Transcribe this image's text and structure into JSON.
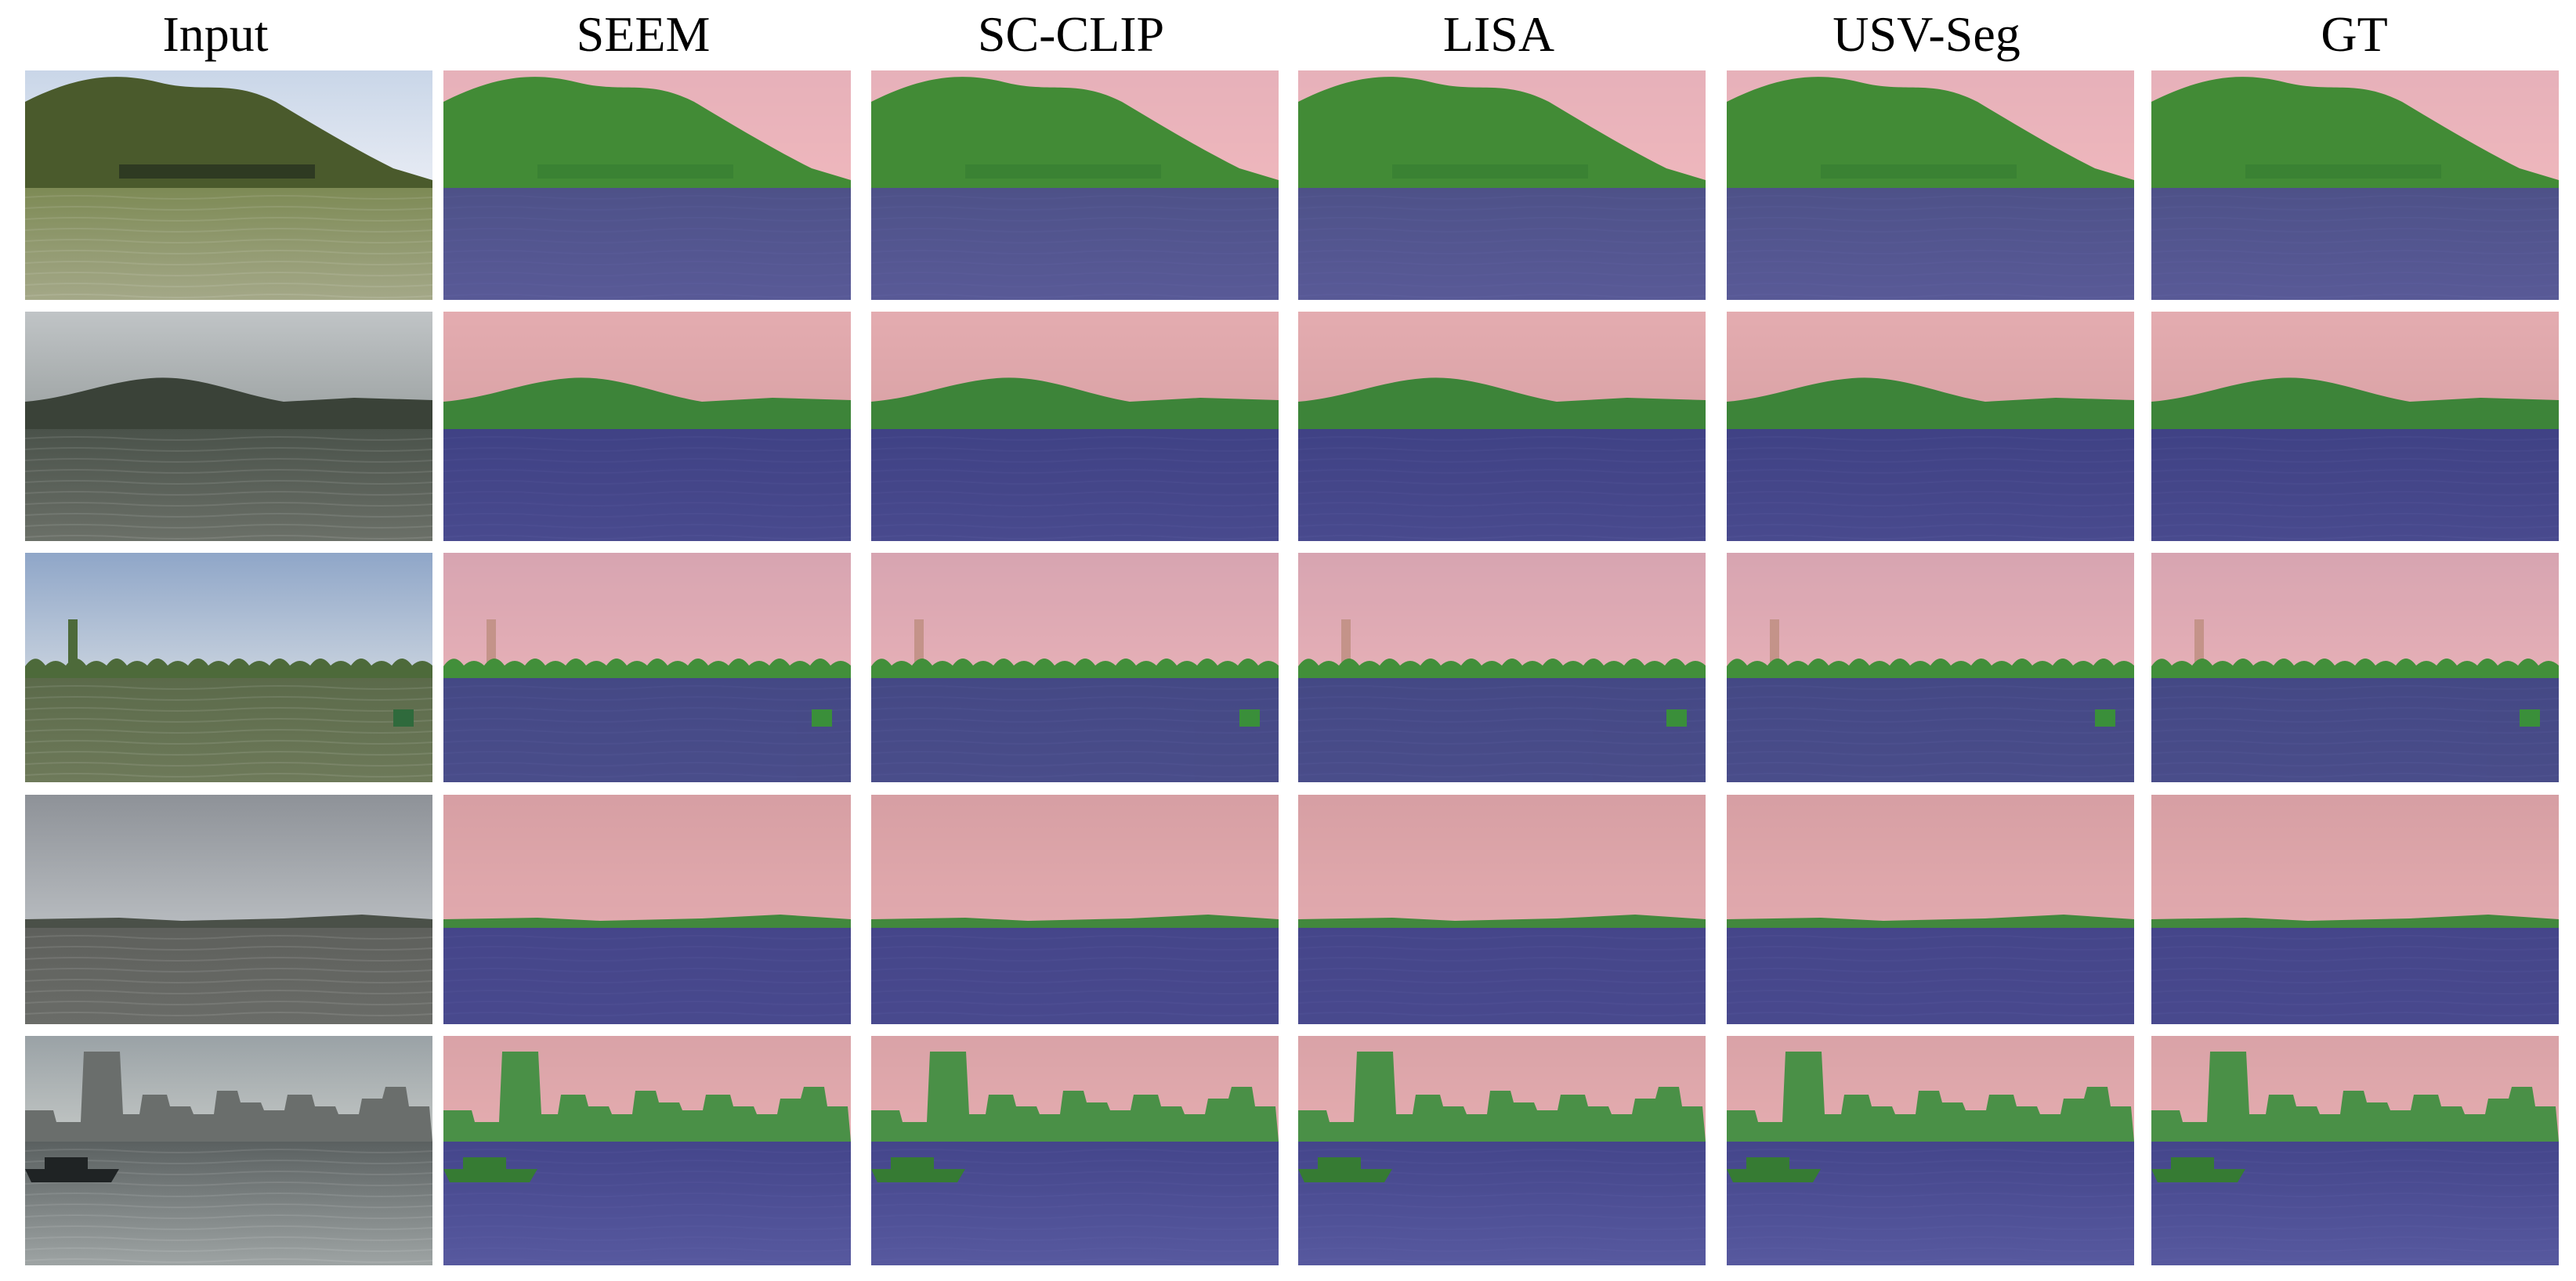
{
  "columns": [
    {
      "label": "Input",
      "kind": "input"
    },
    {
      "label": "SEEM",
      "kind": "overlay"
    },
    {
      "label": "SC-CLIP",
      "kind": "overlay"
    },
    {
      "label": "LISA",
      "kind": "overlay"
    },
    {
      "label": "USV-Seg",
      "kind": "overlay"
    },
    {
      "label": "GT",
      "kind": "overlay"
    }
  ],
  "class_colors": {
    "sky": "#f2a3a8",
    "land": "#3f9e3a",
    "water": "#3c3c9c"
  },
  "scenes": [
    {
      "name": "tree-lined-shore",
      "sky_top": "#c9d6e8",
      "sky_bottom": "#e8ecf4",
      "land": "#4a5a2c",
      "water_top": "#7d8a55",
      "water_bottom": "#a4a888",
      "skyline": "hill-trees",
      "objects": [
        "pier"
      ]
    },
    {
      "name": "misty-hill-lake",
      "sky_top": "#c0c4c6",
      "sky_bottom": "#9aa0a0",
      "land": "#3a4238",
      "water_top": "#4a524a",
      "water_bottom": "#6b7068",
      "skyline": "hill",
      "objects": []
    },
    {
      "name": "lake-with-buoy",
      "sky_top": "#8fa6c8",
      "sky_bottom": "#c8d2de",
      "land": "#4d6a3a",
      "water_top": "#5b6a4a",
      "water_bottom": "#6e7a5a",
      "skyline": "flat-trees",
      "objects": [
        "tower",
        "buoy"
      ]
    },
    {
      "name": "overcast-wide-lake",
      "sky_top": "#8e9298",
      "sky_bottom": "#b8bcc0",
      "land": "#4a5048",
      "water_top": "#5e605c",
      "water_bottom": "#6a6c68",
      "skyline": "thin-line",
      "objects": []
    },
    {
      "name": "city-harbor-boat",
      "sky_top": "#9aa2a6",
      "sky_bottom": "#c4c8c6",
      "land": "#6a6e6c",
      "water_top": "#5a6060",
      "water_bottom": "#9ea4a4",
      "skyline": "city",
      "objects": [
        "boat"
      ]
    }
  ]
}
